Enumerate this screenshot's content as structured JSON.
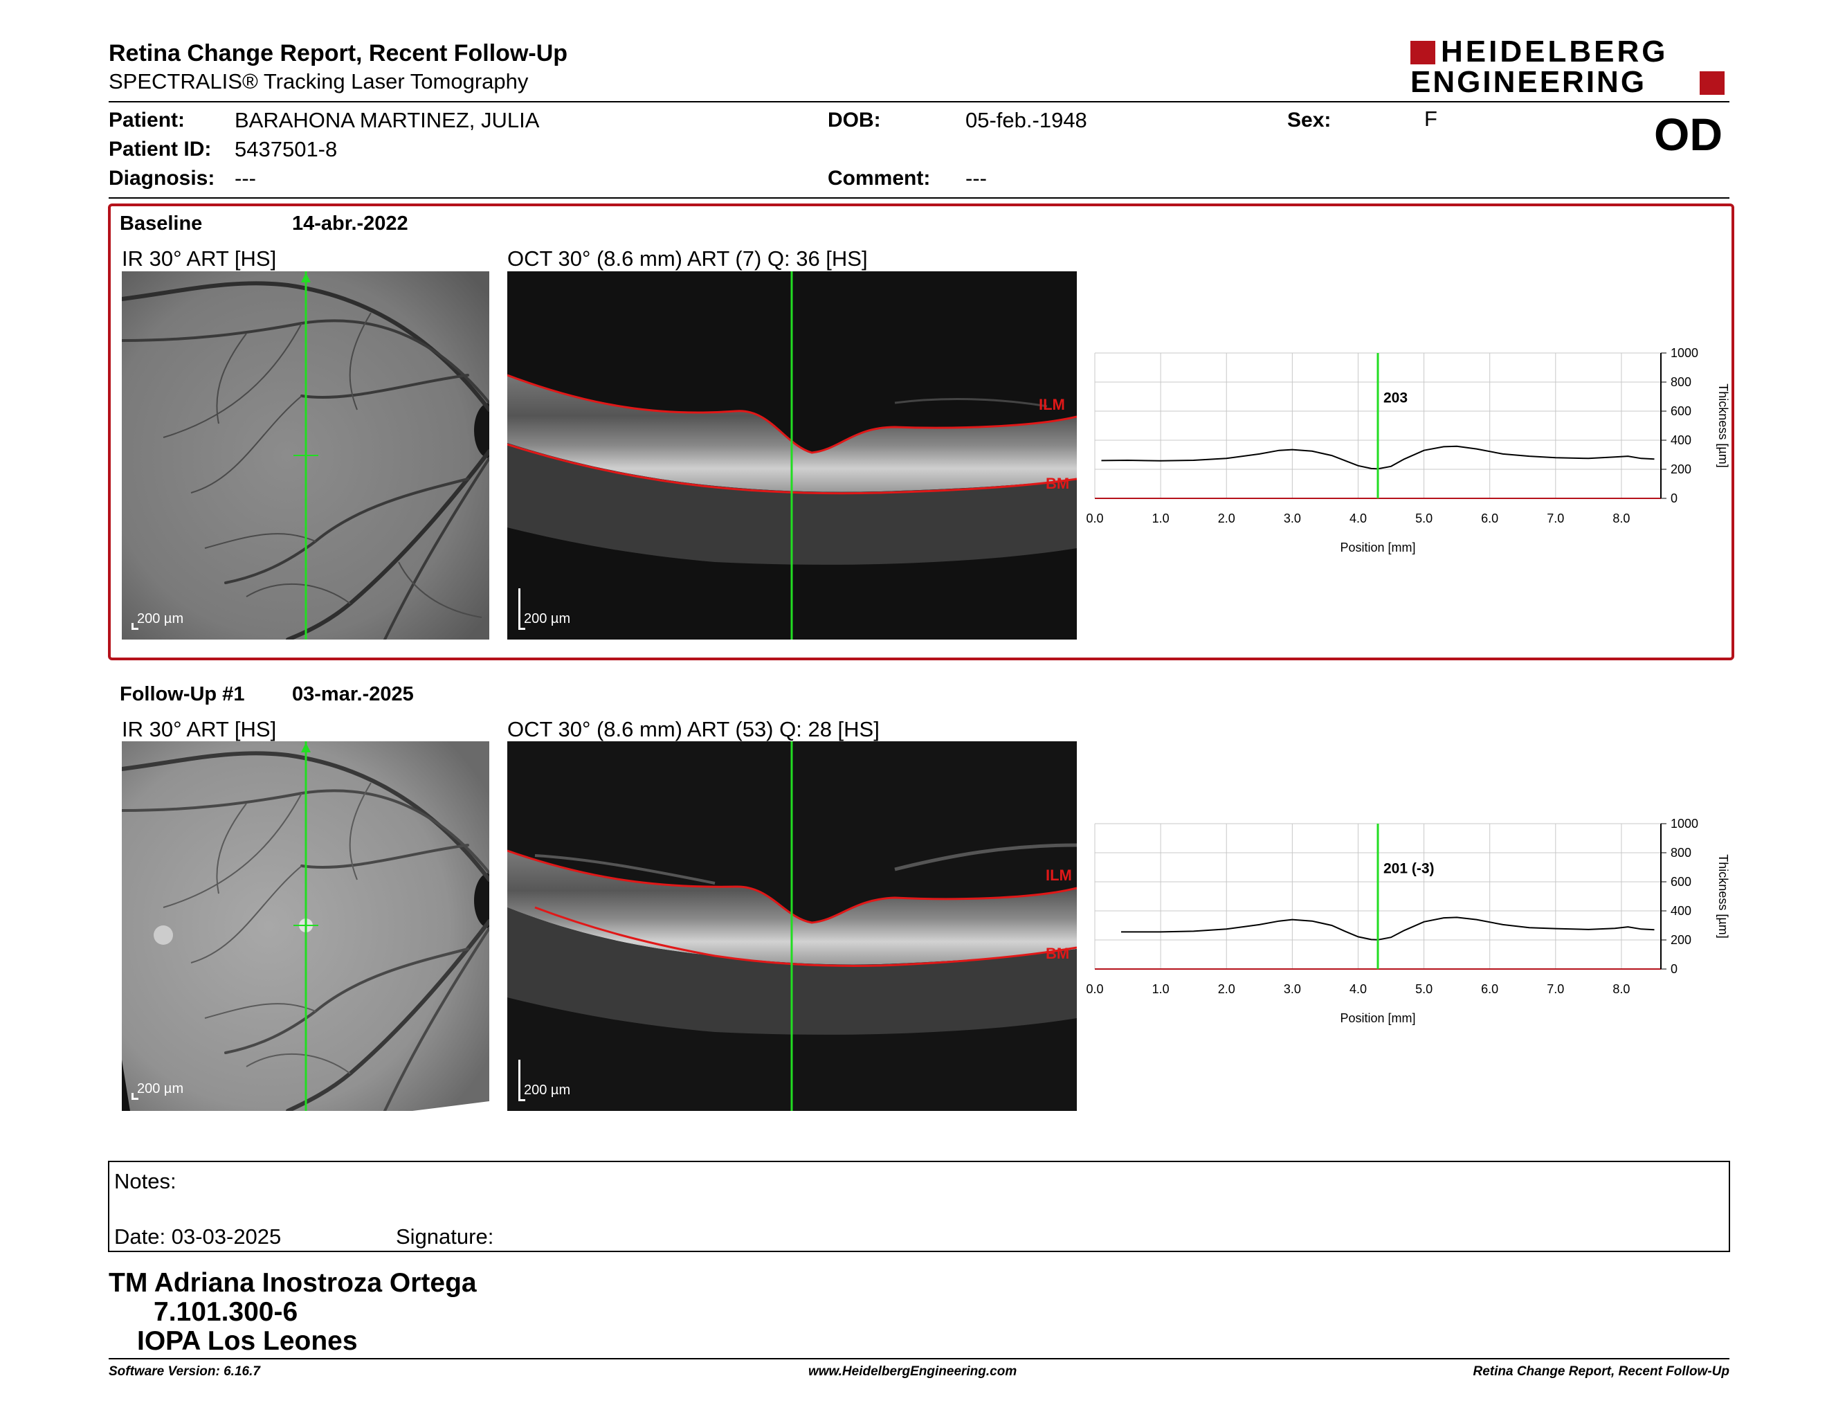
{
  "header": {
    "title": "Retina Change Report, Recent Follow-Up",
    "subtitle": "SPECTRALIS® Tracking Laser Tomography",
    "logo_line1": "HEIDELBERG",
    "logo_line2": "ENGINEERING",
    "eye": "OD"
  },
  "patient": {
    "patient_label": "Patient:",
    "patient_value": "BARAHONA MARTINEZ, JULIA",
    "dob_label": "DOB:",
    "dob_value": "05-feb.-1948",
    "sex_label": "Sex:",
    "sex_value": "F",
    "id_label": "Patient ID:",
    "id_value": "5437501-8",
    "diagnosis_label": "Diagnosis:",
    "diagnosis_value": "---",
    "comment_label": "Comment:",
    "comment_value": "---"
  },
  "colors": {
    "accent": "#B5121B",
    "marker": "#22DD22",
    "layer": "#E01818"
  },
  "baseline": {
    "label": "Baseline",
    "date": "14-abr.-2022",
    "ir_title": "IR 30° ART [HS]",
    "oct_title": "OCT 30° (8.6 mm) ART (7) Q: 36 [HS]",
    "ir_scale": "200 µm",
    "oct_scale": "200 µm",
    "ilm_label": "ILM",
    "bm_label": "BM"
  },
  "followup": {
    "label": "Follow-Up #1",
    "date": "03-mar.-2025",
    "ir_title": "IR 30° ART [HS]",
    "oct_title": "OCT 30° (8.6 mm) ART (53) Q: 28 [HS]",
    "ir_scale": "200 µm",
    "oct_scale": "200 µm",
    "ilm_label": "ILM",
    "bm_label": "BM"
  },
  "chart_data": [
    {
      "type": "line",
      "xlabel": "Position [mm]",
      "ylabel": "Thickness [µm]",
      "xlim": [
        0,
        8.6
      ],
      "ylim": [
        0,
        1000
      ],
      "xticks": [
        "0.0",
        "1.0",
        "2.0",
        "3.0",
        "4.0",
        "5.0",
        "6.0",
        "7.0",
        "8.0"
      ],
      "yticks": [
        "0",
        "200",
        "400",
        "600",
        "800",
        "1000"
      ],
      "grid": true,
      "marker_x": 4.3,
      "marker_label": "203",
      "series": [
        {
          "x": [
            0.1,
            0.5,
            1.0,
            1.5,
            2.0,
            2.5,
            2.8,
            3.0,
            3.3,
            3.6,
            3.8,
            4.0,
            4.2,
            4.3,
            4.5,
            4.7,
            5.0,
            5.3,
            5.5,
            5.8,
            6.2,
            6.6,
            7.0,
            7.5,
            7.9,
            8.1,
            8.3,
            8.5
          ],
          "y": [
            260,
            262,
            258,
            262,
            275,
            305,
            330,
            335,
            325,
            295,
            260,
            225,
            205,
            203,
            220,
            270,
            330,
            355,
            358,
            340,
            305,
            290,
            280,
            275,
            285,
            290,
            275,
            270
          ]
        }
      ]
    },
    {
      "type": "line",
      "xlabel": "Position [mm]",
      "ylabel": "Thickness [µm]",
      "xlim": [
        0,
        8.6
      ],
      "ylim": [
        0,
        1000
      ],
      "xticks": [
        "0.0",
        "1.0",
        "2.0",
        "3.0",
        "4.0",
        "5.0",
        "6.0",
        "7.0",
        "8.0"
      ],
      "yticks": [
        "0",
        "200",
        "400",
        "600",
        "800",
        "1000"
      ],
      "grid": true,
      "marker_x": 4.3,
      "marker_label": "201 (-3)",
      "series": [
        {
          "x": [
            0.4,
            1.0,
            1.5,
            2.0,
            2.5,
            2.8,
            3.0,
            3.3,
            3.6,
            3.8,
            4.0,
            4.2,
            4.3,
            4.5,
            4.7,
            5.0,
            5.3,
            5.5,
            5.8,
            6.2,
            6.6,
            7.0,
            7.5,
            7.9,
            8.1,
            8.3,
            8.5
          ],
          "y": [
            255,
            255,
            260,
            275,
            305,
            330,
            340,
            330,
            300,
            260,
            222,
            203,
            201,
            218,
            265,
            325,
            352,
            355,
            340,
            305,
            285,
            278,
            272,
            280,
            290,
            275,
            270
          ]
        }
      ]
    }
  ],
  "notes": {
    "notes_label": "Notes:",
    "date_label": "Date: 03-03-2025",
    "signature_label": "Signature:"
  },
  "signature_block": {
    "line1": "TM Adriana Inostroza Ortega",
    "line2": "7.101.300-6",
    "line3": "IOPA Los Leones"
  },
  "footer": {
    "software": "Software Version: 6.16.7",
    "website": "www.HeidelbergEngineering.com",
    "report_name": "Retina Change Report, Recent Follow-Up"
  }
}
